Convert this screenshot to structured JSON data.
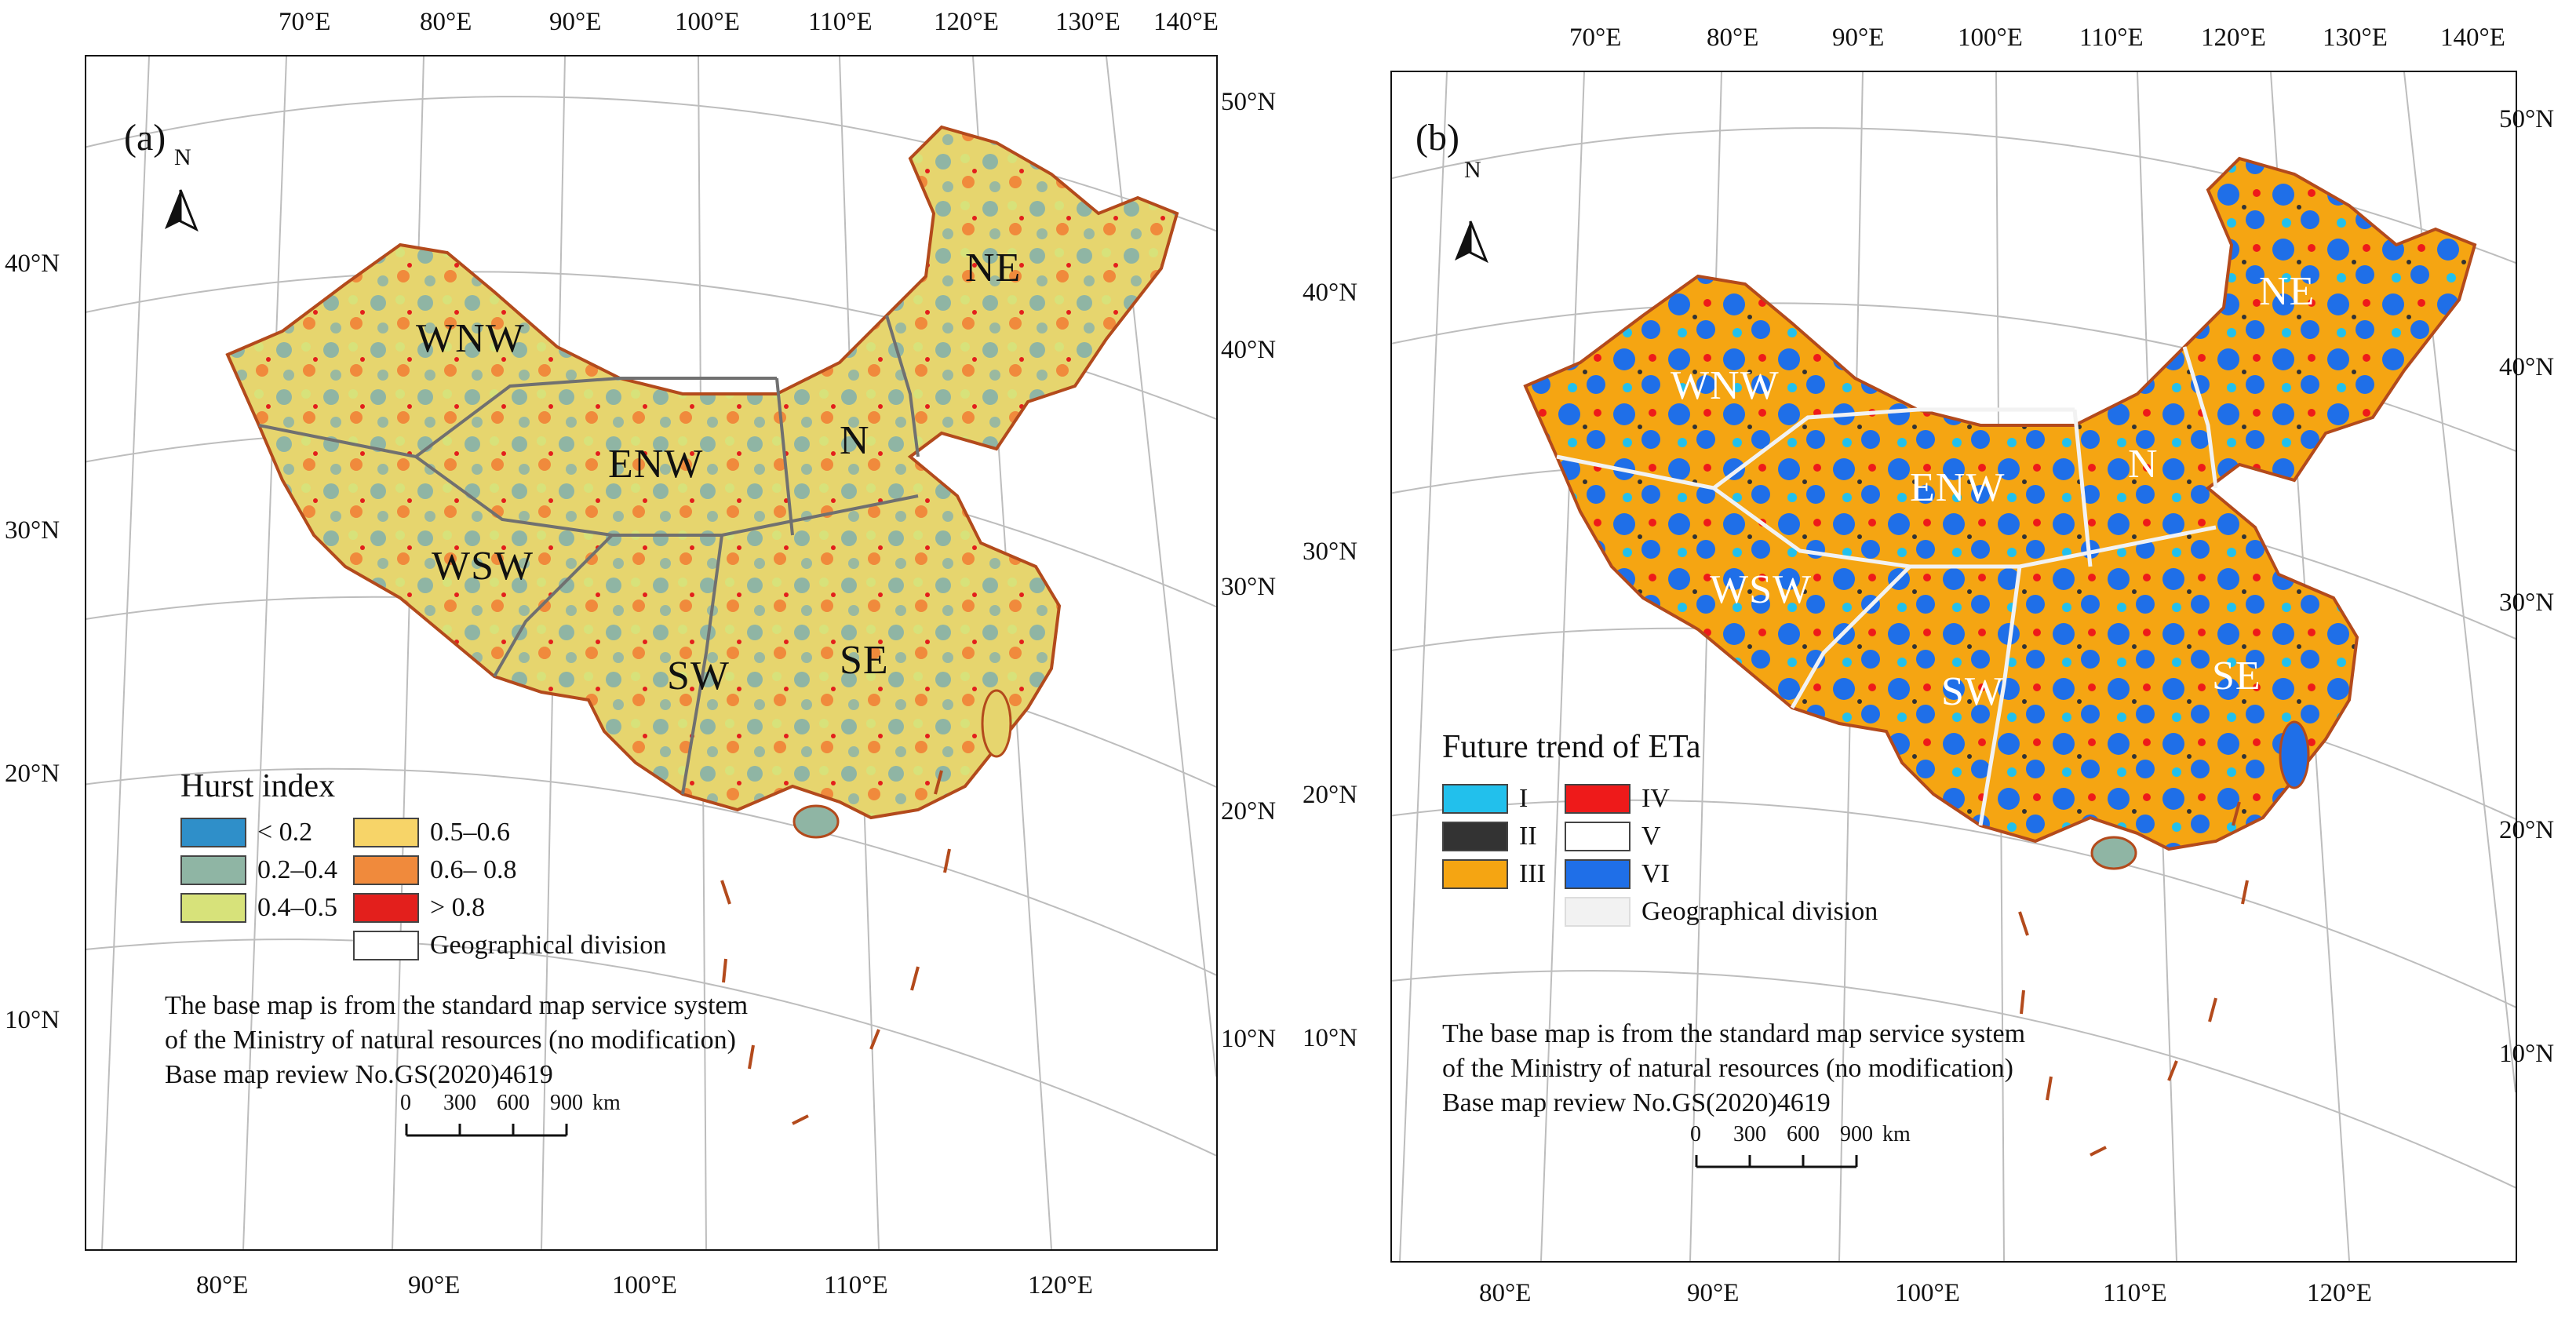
{
  "panels": [
    {
      "label": "(a)",
      "north": "N",
      "top_lon": [
        "70°E",
        "80°E",
        "90°E",
        "100°E",
        "110°E",
        "120°E",
        "130°E",
        "140°E"
      ],
      "bottom_lon": [
        "80°E",
        "90°E",
        "100°E",
        "110°E",
        "120°E"
      ],
      "left_lat": [
        "40°N",
        "30°N",
        "20°N",
        "10°N"
      ],
      "right_lat": [
        "50°N",
        "40°N",
        "30°N",
        "20°N",
        "10°N"
      ],
      "regions": [
        "WNW",
        "ENW",
        "N",
        "NE",
        "WSW",
        "SW",
        "SE"
      ],
      "legend": {
        "title": "Hurst index",
        "items": [
          {
            "label": "< 0.2",
            "color": "#2f8fc9"
          },
          {
            "label": "0.2–0.4",
            "color": "#8fb5a4"
          },
          {
            "label": "0.4–0.5",
            "color": "#d7e27a"
          },
          {
            "label": "0.5–0.6",
            "color": "#f7d468"
          },
          {
            "label": "0.6– 0.8",
            "color": "#f08a3c"
          },
          {
            "label": "> 0.8",
            "color": "#e31f1c"
          },
          {
            "label": "Geographical division",
            "color": "#ffffff"
          }
        ]
      },
      "note": [
        "The base map is from the standard map service system",
        "of the Ministry of natural resources (no modification)",
        "Base map review No.GS(2020)4619"
      ],
      "scale": {
        "ticks": [
          "0",
          "300",
          "600",
          "900"
        ],
        "unit": "km"
      }
    },
    {
      "label": "(b)",
      "north": "N",
      "top_lon": [
        "70°E",
        "80°E",
        "90°E",
        "100°E",
        "110°E",
        "120°E",
        "130°E",
        "140°E"
      ],
      "bottom_lon": [
        "80°E",
        "90°E",
        "100°E",
        "110°E",
        "120°E"
      ],
      "left_lat": [
        "40°N",
        "30°N",
        "20°N",
        "10°N"
      ],
      "right_lat": [
        "50°N",
        "40°N",
        "30°N",
        "20°N",
        "10°N"
      ],
      "regions": [
        "WNW",
        "ENW",
        "N",
        "NE",
        "WSW",
        "SW",
        "SE"
      ],
      "legend": {
        "title": "Future trend of ETa",
        "items": [
          {
            "label": "I",
            "color": "#22c0ec"
          },
          {
            "label": "II",
            "color": "#333333"
          },
          {
            "label": "III",
            "color": "#f5a512"
          },
          {
            "label": "IV",
            "color": "#ee1a1a"
          },
          {
            "label": "V",
            "color": "#ffffff"
          },
          {
            "label": "VI",
            "color": "#1f6fe8"
          },
          {
            "label": "Geographical division",
            "color": "#f2f2f2"
          }
        ]
      },
      "note": [
        "The base map is from the standard map service system",
        "of the Ministry of natural resources (no modification)",
        "Base map review No.GS(2020)4619"
      ],
      "scale": {
        "ticks": [
          "0",
          "300",
          "600",
          "900"
        ],
        "unit": "km"
      }
    }
  ]
}
